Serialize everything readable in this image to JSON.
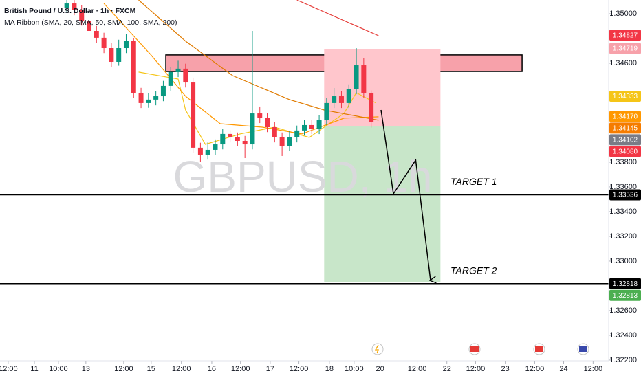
{
  "chart_data": {
    "type": "candlestick",
    "title": "British Pound / U.S. Dollar · 1h · FXCM",
    "subtitle": "MA Ribbon (SMA, 20, SMA, 50, SMA, 100, SMA, 200)",
    "watermark": "GBPUSD, 1h",
    "up_color": "#089981",
    "down_color": "#f23645",
    "xlim": [
      0,
      246
    ],
    "ylim": [
      1.32194,
      1.35111
    ],
    "yticks": [
      {
        "value": 1.35,
        "label": "1.35000"
      },
      {
        "value": 1.346,
        "label": "1.34600"
      },
      {
        "value": 1.34,
        "label": "1.34000"
      },
      {
        "value": 1.338,
        "label": "1.33800"
      },
      {
        "value": 1.336,
        "label": "1.33600"
      },
      {
        "value": 1.334,
        "label": "1.33400"
      },
      {
        "value": 1.332,
        "label": "1.33200"
      },
      {
        "value": 1.33,
        "label": "1.33000"
      },
      {
        "value": 1.326,
        "label": "1.32600"
      },
      {
        "value": 1.324,
        "label": "1.32400"
      },
      {
        "value": 1.322,
        "label": "1.32200"
      }
    ],
    "xticks": [
      {
        "value": 3.3,
        "label": "12:00"
      },
      {
        "value": 13.9,
        "label": "11"
      },
      {
        "value": 23.6,
        "label": "10:00"
      },
      {
        "value": 34.7,
        "label": "13"
      },
      {
        "value": 50,
        "label": "12:00"
      },
      {
        "value": 61.1,
        "label": "15"
      },
      {
        "value": 73.3,
        "label": "12:00"
      },
      {
        "value": 85.6,
        "label": "16"
      },
      {
        "value": 97.2,
        "label": "12:00"
      },
      {
        "value": 109.2,
        "label": "17"
      },
      {
        "value": 120.8,
        "label": "12:00"
      },
      {
        "value": 133.1,
        "label": "18"
      },
      {
        "value": 143.1,
        "label": "10:00"
      },
      {
        "value": 153.6,
        "label": "20"
      },
      {
        "value": 168.6,
        "label": "12:00"
      },
      {
        "value": 180.6,
        "label": "22"
      },
      {
        "value": 192.2,
        "label": "12:00"
      },
      {
        "value": 204.2,
        "label": "23"
      },
      {
        "value": 216.1,
        "label": "12:00"
      },
      {
        "value": 227.8,
        "label": "24"
      },
      {
        "value": 239.7,
        "label": "12:00"
      }
    ],
    "x": [
      27,
      30,
      33,
      36,
      39,
      42,
      45,
      48,
      51,
      54,
      57,
      60,
      63,
      66,
      69,
      72,
      75,
      78,
      81,
      84,
      87,
      90,
      93,
      96,
      99,
      102,
      105,
      108,
      111,
      114,
      117,
      120,
      123,
      126,
      129,
      132,
      135,
      138,
      141,
      144,
      147,
      150
    ],
    "open": [
      1.3505,
      1.35083,
      1.35028,
      1.34944,
      1.34861,
      1.34806,
      1.34722,
      1.34611,
      1.34722,
      1.34778,
      1.34361,
      1.34278,
      1.34306,
      1.34333,
      1.34417,
      1.34528,
      1.34556,
      1.34444,
      1.33917,
      1.33861,
      1.339,
      1.33944,
      1.34028,
      1.34,
      1.33972,
      1.33944,
      1.34194,
      1.34156,
      1.34083,
      1.34,
      1.33933,
      1.34,
      1.34056,
      1.341,
      1.34067,
      1.34139,
      1.34278,
      1.34333,
      1.34278,
      1.34389,
      1.34583,
      1.34361
    ],
    "high": [
      1.35123,
      1.3511,
      1.35068,
      1.34984,
      1.34901,
      1.34846,
      1.34762,
      1.3479,
      1.34838,
      1.348,
      1.34401,
      1.34356,
      1.34373,
      1.34457,
      1.34568,
      1.3462,
      1.34596,
      1.34484,
      1.33957,
      1.3396,
      1.33984,
      1.34068,
      1.34058,
      1.3404,
      1.34012,
      1.34861,
      1.3425,
      1.34196,
      1.34123,
      1.3404,
      1.3405,
      1.34096,
      1.3414,
      1.3414,
      1.34179,
      1.34318,
      1.344,
      1.34373,
      1.34429,
      1.34722,
      1.3464,
      1.3438
    ],
    "low": [
      1.3501,
      1.34988,
      1.34904,
      1.34821,
      1.34766,
      1.34682,
      1.34571,
      1.3458,
      1.34682,
      1.34321,
      1.34238,
      1.3424,
      1.3426,
      1.34293,
      1.34377,
      1.34488,
      1.34404,
      1.33877,
      1.338,
      1.33821,
      1.3386,
      1.33904,
      1.3396,
      1.33932,
      1.33833,
      1.33904,
      1.34116,
      1.34043,
      1.3396,
      1.3385,
      1.33893,
      1.3396,
      1.34016,
      1.34027,
      1.34027,
      1.34099,
      1.34238,
      1.34238,
      1.34238,
      1.34349,
      1.34321,
      1.3408
    ],
    "close": [
      1.35083,
      1.35028,
      1.34944,
      1.34861,
      1.34806,
      1.34722,
      1.34611,
      1.34722,
      1.34778,
      1.34361,
      1.34278,
      1.34306,
      1.34333,
      1.34417,
      1.34528,
      1.34556,
      1.34444,
      1.33917,
      1.33861,
      1.339,
      1.33944,
      1.34028,
      1.34,
      1.33972,
      1.33944,
      1.34194,
      1.34156,
      1.34083,
      1.34,
      1.33933,
      1.34,
      1.34056,
      1.341,
      1.34067,
      1.34139,
      1.34278,
      1.34333,
      1.34278,
      1.34389,
      1.34583,
      1.34361,
      1.34122
    ],
    "series": [
      {
        "color": "#f5c518",
        "x": [
          56,
          72,
          75,
          83,
          97,
          111,
          125,
          139,
          144,
          152
        ],
        "values": [
          1.34528,
          1.34472,
          1.34222,
          1.33944,
          1.34028,
          1.34083,
          1.34,
          1.34194,
          1.34361,
          1.34278
        ]
      },
      {
        "color": "#ff9800",
        "x": [
          42,
          61,
          75,
          89,
          106,
          122,
          139,
          153
        ],
        "values": [
          1.35083,
          1.34667,
          1.34333,
          1.34111,
          1.34083,
          1.34028,
          1.34156,
          1.34167
        ]
      },
      {
        "color": "#e07b00",
        "x": [
          56,
          75,
          94,
          117,
          131,
          153
        ],
        "values": [
          1.35111,
          1.34778,
          1.345,
          1.34306,
          1.34222,
          1.34139
        ]
      },
      {
        "color": "#e53935",
        "x": [
          120,
          153
        ],
        "values": [
          1.35111,
          1.34822
        ]
      }
    ],
    "zones": [
      {
        "x": [
          67,
          211
        ],
        "y": [
          1.34533,
          1.34667
        ],
        "color": "#f7a1aa",
        "border": "#000000"
      },
      {
        "x": [
          131,
          178
        ],
        "y": [
          1.34094,
          1.34711
        ],
        "color": "#ffc6cc"
      },
      {
        "x": [
          131,
          178
        ],
        "y": [
          1.32833,
          1.34094
        ],
        "color": "#c8e6c9"
      }
    ],
    "hlines": [
      {
        "value": 1.33536,
        "label": "TARGET 1"
      },
      {
        "value": 1.32818,
        "label": "TARGET 2"
      }
    ],
    "projection": {
      "x": [
        154,
        159,
        168,
        174
      ],
      "values": [
        1.34222,
        1.33544,
        1.33817,
        1.32844
      ]
    },
    "price_tags": [
      {
        "value": 1.34827,
        "label": "1.34827",
        "color": "#f23645"
      },
      {
        "value": 1.34719,
        "label": "1.34719",
        "color": "#f7a1aa"
      },
      {
        "value": 1.34333,
        "label": "1.34333",
        "color": "#f5c518"
      },
      {
        "value": 1.3417,
        "label": "1.34170",
        "color": "#ff9800"
      },
      {
        "value": 1.34145,
        "label": "1.34145",
        "color": "#f57c00"
      },
      {
        "value": 1.34102,
        "label": "1.34102",
        "color": "#787b86"
      },
      {
        "value": 1.3408,
        "label": "1.34080",
        "color": "#f23645"
      },
      {
        "value": 1.33536,
        "label": "1.33536",
        "color": "#000000"
      },
      {
        "value": 1.32818,
        "label": "1.32818",
        "color": "#000000"
      },
      {
        "value": 1.32813,
        "label": "1.32813",
        "color": "#4caf50"
      }
    ]
  }
}
